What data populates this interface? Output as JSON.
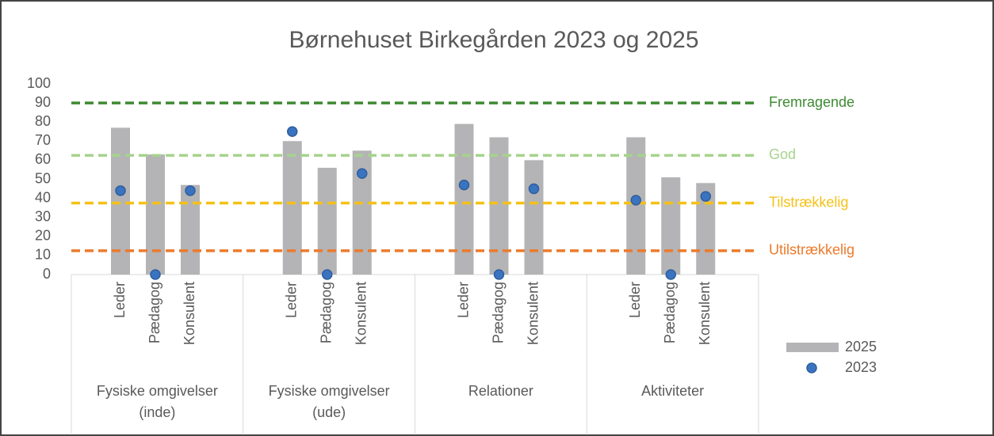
{
  "chart_data": {
    "type": "bar",
    "title": "Børnehuset Birkegården 2023 og 2025",
    "groups": [
      {
        "name": [
          "Fysiske omgivelser",
          "(inde)"
        ],
        "categories": [
          "Leder",
          "Pædagog",
          "Konsulent"
        ]
      },
      {
        "name": [
          "Fysiske omgivelser",
          "(ude)"
        ],
        "categories": [
          "Leder",
          "Pædagog",
          "Konsulent"
        ]
      },
      {
        "name": [
          "Relationer"
        ],
        "categories": [
          "Leder",
          "Pædagog",
          "Konsulent"
        ]
      },
      {
        "name": [
          "Aktiviteter"
        ],
        "categories": [
          "Leder",
          "Pædagog",
          "Konsulent"
        ]
      }
    ],
    "series": [
      {
        "name": "2025",
        "type": "bar",
        "color": "#b4b4b6",
        "values": [
          77,
          63,
          47,
          70,
          56,
          65,
          79,
          72,
          60,
          72,
          51,
          48
        ]
      },
      {
        "name": "2023",
        "type": "scatter",
        "color": "#3a74c0",
        "values": [
          44,
          0,
          44,
          75,
          0,
          53,
          47,
          0,
          45,
          39,
          0,
          41
        ]
      }
    ],
    "reference_lines": [
      {
        "label": "Fremragende",
        "value": 90,
        "color": "#3e8a32"
      },
      {
        "label": "God",
        "value": 62.5,
        "color": "#a6d38c"
      },
      {
        "label": "Tilstrækkelig",
        "value": 37.5,
        "color": "#f5c118"
      },
      {
        "label": "Utilstrækkelig",
        "value": 12.5,
        "color": "#ec7a2b"
      }
    ],
    "ylim": [
      0,
      100
    ],
    "yticks": [
      0,
      10,
      20,
      30,
      40,
      50,
      60,
      70,
      80,
      90,
      100
    ],
    "grid": false,
    "legend": "right"
  }
}
